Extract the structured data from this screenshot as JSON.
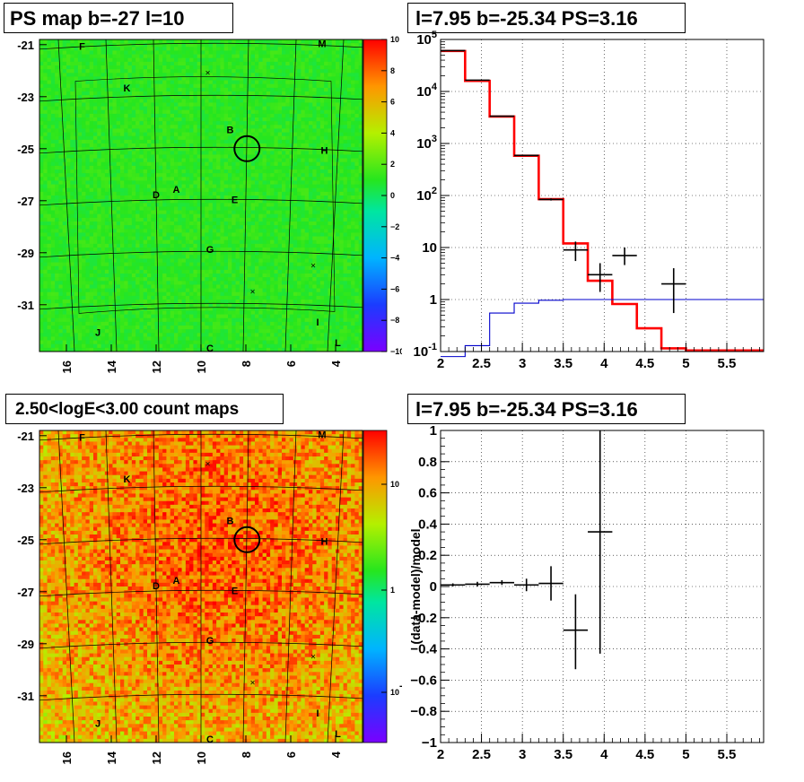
{
  "panels": {
    "tl": {
      "title": "PS map b=-27 l=10",
      "y_ticks": [
        "-21",
        "-23",
        "-25",
        "-27",
        "-29",
        "-31"
      ],
      "x_ticks": [
        "16",
        "14",
        "12",
        "10",
        "8",
        "6",
        "4"
      ],
      "colorbar_ticks": [
        "10",
        "8",
        "6",
        "4",
        "2",
        "0",
        "−2",
        "−4",
        "−6",
        "−8",
        "−10"
      ],
      "labels": [
        "F",
        "M",
        "K",
        "B",
        "H",
        "D",
        "A",
        "E",
        "G",
        "I",
        "J",
        "C",
        "L"
      ]
    },
    "tr": {
      "title": "l=7.95 b=-25.34 PS=3.16",
      "y_ticks": [
        "10^5",
        "10^4",
        "10^3",
        "10^2",
        "10",
        "1",
        "10^-1"
      ],
      "x_ticks": [
        "2",
        "2.5",
        "3",
        "3.5",
        "4",
        "4.5",
        "5",
        "5.5"
      ]
    },
    "bl": {
      "title": "2.50<logE<3.00 count maps",
      "y_ticks": [
        "-21",
        "-23",
        "-25",
        "-27",
        "-29",
        "-31"
      ],
      "x_ticks": [
        "16",
        "14",
        "12",
        "10",
        "8",
        "6",
        "4"
      ],
      "colorbar_ticks": [
        "10",
        "1",
        "10^-1"
      ],
      "labels": [
        "F",
        "M",
        "K",
        "B",
        "H",
        "D",
        "A",
        "E",
        "G",
        "I",
        "J",
        "C",
        "L"
      ]
    },
    "br": {
      "title": "l=7.95 b=-25.34 PS=3.16",
      "ylabel": "(data-model)/model",
      "y_ticks": [
        "1",
        "0.8",
        "0.6",
        "0.4",
        "0.2",
        "0",
        "−0.2",
        "−0.4",
        "−0.6",
        "−0.8",
        "−1"
      ],
      "x_ticks": [
        "2",
        "2.5",
        "3",
        "3.5",
        "4",
        "4.5",
        "5",
        "5.5"
      ]
    }
  },
  "colors": {
    "model_line": "#ff0000",
    "background_line": "#0000cc",
    "data": "#000000"
  },
  "chart_data": [
    {
      "type": "heatmap",
      "title": "PS map b=-27 l=10",
      "xlim": [
        17.2,
        2.8
      ],
      "ylim": [
        -32.8,
        -20.8
      ],
      "zlim": [
        -10,
        10
      ],
      "x_ticks": [
        16,
        14,
        12,
        10,
        8,
        6,
        4
      ],
      "y_ticks": [
        -21,
        -23,
        -25,
        -27,
        -29,
        -31
      ],
      "base_value": 0.3,
      "colorscale": "rainbow",
      "source_circle": {
        "l": 7.95,
        "b": -25.0
      },
      "markers": [
        {
          "text": "F",
          "l": 15.3,
          "b": -21.2
        },
        {
          "text": "M",
          "l": 4.6,
          "b": -21.1
        },
        {
          "text": "K",
          "l": 13.3,
          "b": -22.8
        },
        {
          "text": "B",
          "l": 8.7,
          "b": -24.4
        },
        {
          "text": "H",
          "l": 4.5,
          "b": -25.2
        },
        {
          "text": "D",
          "l": 12.0,
          "b": -26.9
        },
        {
          "text": "A",
          "l": 11.1,
          "b": -26.7
        },
        {
          "text": "E",
          "l": 8.5,
          "b": -27.1
        },
        {
          "text": "G",
          "l": 9.6,
          "b": -29.0
        },
        {
          "text": "I",
          "l": 4.8,
          "b": -31.8
        },
        {
          "text": "J",
          "l": 14.6,
          "b": -32.2
        },
        {
          "text": "C",
          "l": 9.6,
          "b": -32.8
        },
        {
          "text": "L",
          "l": 3.9,
          "b": -32.6
        }
      ],
      "crosses": [
        {
          "l": 9.7,
          "b": -22.1
        },
        {
          "l": 7.7,
          "b": -30.5
        },
        {
          "l": 5.0,
          "b": -29.5
        }
      ]
    },
    {
      "type": "line",
      "title": "l=7.95 b=-25.34 PS=3.16",
      "xlim": [
        2,
        5.95
      ],
      "ylim": [
        0.1,
        100000
      ],
      "yscale": "log",
      "grid": true,
      "series": [
        {
          "style": "step",
          "color": "#ff0000",
          "edges": [
            2.0,
            2.3,
            2.6,
            2.9,
            3.2,
            3.5,
            3.8,
            4.1,
            4.4,
            4.7,
            5.0,
            5.95
          ],
          "values": [
            60000,
            16000,
            3300,
            580,
            85,
            12,
            2.3,
            0.82,
            0.28,
            0.115,
            0.105
          ]
        },
        {
          "style": "step",
          "color": "#0000cc",
          "edges": [
            2.0,
            2.3,
            2.6,
            2.9,
            3.2,
            3.5,
            3.8,
            4.1,
            4.4,
            4.7,
            5.0,
            5.95
          ],
          "values": [
            0.08,
            0.13,
            0.55,
            0.85,
            0.97,
            1.0,
            1.0,
            1.0,
            1.0,
            1.0,
            1.0
          ]
        },
        {
          "style": "errorbar",
          "color": "#000000",
          "x": [
            2.15,
            2.45,
            2.75,
            3.05,
            3.35,
            3.65,
            3.95,
            4.25,
            4.85
          ],
          "y": [
            61000,
            16500,
            3350,
            590,
            84,
            9,
            3,
            7,
            2
          ],
          "xerr": [
            0.15,
            0.15,
            0.15,
            0.15,
            0.15,
            0.15,
            0.15,
            0.15,
            0.15
          ],
          "ylo": [
            60000,
            16300,
            3300,
            580,
            80,
            5.5,
            1.4,
            4.6,
            0.55
          ],
          "yhi": [
            62000,
            16700,
            3400,
            600,
            88,
            13,
            5,
            10,
            4
          ]
        }
      ]
    },
    {
      "type": "heatmap",
      "title": "2.50<logE<3.00 count maps",
      "xlim": [
        17.2,
        2.8
      ],
      "ylim": [
        -32.8,
        -20.8
      ],
      "zscale": "log",
      "colorscale": "rainbow",
      "source_circle": {
        "l": 7.95,
        "b": -25.0
      }
    },
    {
      "type": "scatter",
      "title": "l=7.95 b=-25.34 PS=3.16",
      "ylabel": "(data-model)/model",
      "xlim": [
        2,
        5.95
      ],
      "ylim": [
        -1,
        1
      ],
      "grid": true,
      "series": [
        {
          "style": "errorbar",
          "color": "#000000",
          "x": [
            2.15,
            2.45,
            2.75,
            3.05,
            3.35,
            3.65,
            3.95
          ],
          "y": [
            0.01,
            0.015,
            0.025,
            0.01,
            0.02,
            -0.28,
            0.35
          ],
          "xerr": [
            0.15,
            0.15,
            0.15,
            0.15,
            0.15,
            0.15,
            0.15
          ],
          "ylo": [
            0.0,
            0.0,
            0.01,
            -0.03,
            -0.09,
            -0.53,
            -0.43
          ],
          "yhi": [
            0.02,
            0.03,
            0.04,
            0.05,
            0.13,
            -0.05,
            1.0
          ]
        }
      ]
    }
  ]
}
